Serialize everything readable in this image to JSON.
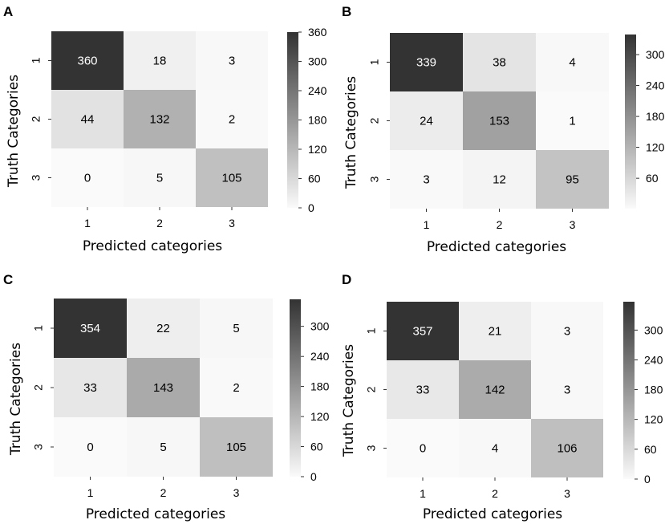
{
  "chart_data": [
    {
      "panel": "A",
      "type": "heatmap",
      "xlabel": "Predicted categories",
      "ylabel": "Truth Categories",
      "x_categories": [
        "1",
        "2",
        "3"
      ],
      "y_categories": [
        "1",
        "2",
        "3"
      ],
      "values": [
        [
          360,
          18,
          3
        ],
        [
          44,
          132,
          2
        ],
        [
          0,
          5,
          105
        ]
      ],
      "colorbar": {
        "min": 0,
        "max": 360,
        "ticks": [
          0,
          60,
          120,
          180,
          240,
          300,
          360
        ]
      }
    },
    {
      "panel": "B",
      "type": "heatmap",
      "xlabel": "Predicted categories",
      "ylabel": "Truth Categories",
      "x_categories": [
        "1",
        "2",
        "3"
      ],
      "y_categories": [
        "1",
        "2",
        "3"
      ],
      "values": [
        [
          339,
          38,
          4
        ],
        [
          24,
          153,
          1
        ],
        [
          3,
          12,
          95
        ]
      ],
      "colorbar": {
        "min": 1,
        "max": 339,
        "ticks": [
          60,
          120,
          180,
          240,
          300
        ]
      }
    },
    {
      "panel": "C",
      "type": "heatmap",
      "xlabel": "Predicted categories",
      "ylabel": "Truth Categories",
      "x_categories": [
        "1",
        "2",
        "3"
      ],
      "y_categories": [
        "1",
        "2",
        "3"
      ],
      "values": [
        [
          354,
          22,
          5
        ],
        [
          33,
          143,
          2
        ],
        [
          0,
          5,
          105
        ]
      ],
      "colorbar": {
        "min": 0,
        "max": 354,
        "ticks": [
          0,
          60,
          120,
          180,
          240,
          300
        ]
      }
    },
    {
      "panel": "D",
      "type": "heatmap",
      "xlabel": "Predicted categories",
      "ylabel": "Truth Categories",
      "x_categories": [
        "1",
        "2",
        "3"
      ],
      "y_categories": [
        "1",
        "2",
        "3"
      ],
      "values": [
        [
          357,
          21,
          3
        ],
        [
          33,
          142,
          3
        ],
        [
          0,
          4,
          106
        ]
      ],
      "colorbar": {
        "min": 0,
        "max": 357,
        "ticks": [
          0,
          60,
          120,
          180,
          240,
          300
        ]
      }
    }
  ],
  "colors": {
    "low": "#fafafa",
    "high": "#333333"
  }
}
